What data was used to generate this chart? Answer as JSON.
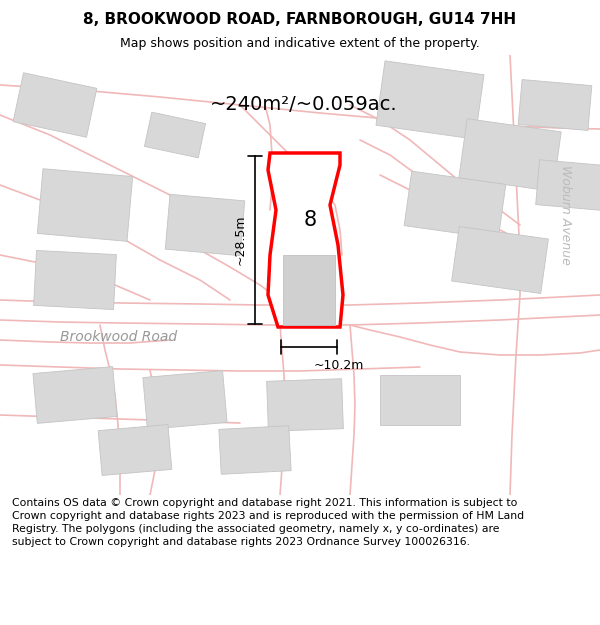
{
  "title": "8, BROOKWOOD ROAD, FARNBOROUGH, GU14 7HH",
  "subtitle": "Map shows position and indicative extent of the property.",
  "area_text": "~240m²/~0.059ac.",
  "dim_width": "~10.2m",
  "dim_height": "~28.5m",
  "label_8": "8",
  "road_label": "Brookwood Road",
  "avenue_label": "Woburn Avenue",
  "footer_text": "Contains OS data © Crown copyright and database right 2021. This information is subject to Crown copyright and database rights 2023 and is reproduced with the permission of HM Land Registry. The polygons (including the associated geometry, namely x, y co-ordinates) are subject to Crown copyright and database rights 2023 Ordnance Survey 100026316.",
  "bg_color": "#ffffff",
  "map_bg": "#f7f4f4",
  "road_color": "#f0b8b8",
  "highlight_color": "#ff0000",
  "building_color": "#d8d8d8",
  "building_edge": "#c4c4c4",
  "title_fontsize": 11,
  "subtitle_fontsize": 9,
  "footer_fontsize": 7.8,
  "road_lw": 1.2,
  "prop_lw": 2.0
}
